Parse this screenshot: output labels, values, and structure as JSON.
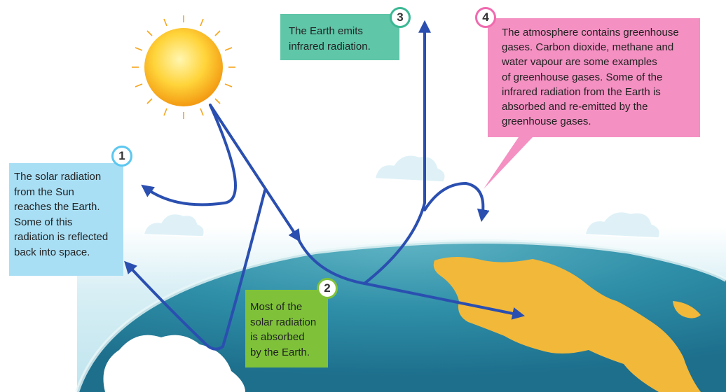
{
  "callouts": {
    "step1": {
      "number": "1",
      "text": "The solar radiation\nfrom the Sun\nreaches the Earth.\nSome of this\nradiation is reflected\nback into space."
    },
    "step2": {
      "number": "2",
      "text": "Most of the\nsolar radiation\nis absorbed\nby the Earth."
    },
    "step3": {
      "number": "3",
      "text": "The Earth emits\ninfrared radiation."
    },
    "step4": {
      "number": "4",
      "text": "The atmosphere contains greenhouse\ngases. Carbon dioxide, methane and\nwater vapour are some examples\nof greenhouse gases. Some of the\ninfrared radiation from the Earth is\nabsorbed and re-emitted by the\ngreenhouse gases."
    }
  },
  "colors": {
    "arrow": "#2a4fb0",
    "box1": "#a9dff5",
    "box2": "#7fc23a",
    "box3": "#5fc6a8",
    "box4": "#f490c2",
    "ocean": "#2f8fa8",
    "land": "#f2b83a",
    "atmosphere": "#bfe6f0"
  }
}
